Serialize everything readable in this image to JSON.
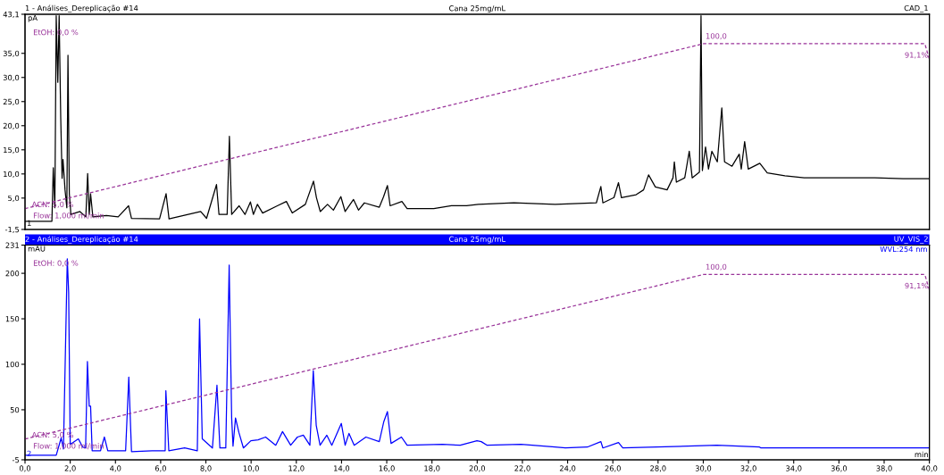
{
  "chart_data": [
    {
      "type": "line",
      "title": "1 - Análises_Dereplicação #14",
      "subtitle": "Cana 25mg/mL",
      "ylabel": "pA",
      "annotations": [
        "CAD_1",
        "EtOH: 0,0 %",
        "Flow: 1,000 ml/min",
        "1"
      ],
      "xlim": [
        0,
        40
      ],
      "ylim": [
        -1.5,
        43.1
      ],
      "yticks": [
        {
          "value": -1.5,
          "label": "-1,5"
        },
        {
          "value": 5,
          "label": "5,0"
        },
        {
          "value": 10,
          "label": "10,0"
        },
        {
          "value": 15,
          "label": "15,0"
        },
        {
          "value": 20,
          "label": "20,0"
        },
        {
          "value": 25,
          "label": "25,0"
        },
        {
          "value": 30,
          "label": "30,0"
        },
        {
          "value": 35,
          "label": "35,0"
        },
        {
          "value": 43.1,
          "label": "43,1"
        }
      ],
      "y2lim": [
        -7,
        117
      ],
      "tick_labels": "y",
      "grid": false,
      "series": [
        {
          "color": "#000000",
          "x": [
            0,
            1.19,
            1.25,
            1.32,
            1.38,
            1.45,
            1.51,
            1.58,
            1.64,
            1.68,
            1.77,
            1.85,
            1.9,
            1.96,
            2.03,
            2.43,
            2.69,
            2.77,
            2.84,
            2.9,
            3.0,
            3.6,
            4.12,
            4.58,
            4.71,
            5.95,
            6.24,
            6.37,
            7.77,
            8.03,
            8.47,
            8.58,
            8.94,
            9.04,
            9.14,
            9.47,
            9.73,
            9.97,
            10.1,
            10.28,
            10.51,
            11.16,
            11.56,
            11.82,
            12.4,
            12.76,
            12.89,
            13.06,
            13.38,
            13.64,
            13.97,
            14.16,
            14.53,
            14.75,
            15.01,
            15.67,
            15.86,
            16.03,
            16.15,
            16.67,
            16.9,
            18.08,
            18.86,
            19.53,
            20.05,
            21.62,
            23.45,
            25.27,
            25.47,
            25.56,
            26.05,
            26.25,
            26.38,
            27.03,
            27.36,
            27.58,
            27.88,
            28.4,
            28.66,
            28.72,
            28.81,
            29.18,
            29.38,
            29.51,
            29.83,
            29.9,
            29.96,
            30.1,
            30.23,
            30.38,
            30.62,
            30.82,
            30.94,
            31.27,
            31.59,
            31.68,
            31.83,
            31.99,
            32.5,
            32.83,
            33.61,
            34.46,
            35.83,
            37.59,
            38.83,
            40
          ],
          "values": [
            0.2,
            0.2,
            11.3,
            3.0,
            42.8,
            29,
            42.8,
            21.6,
            9.1,
            13.0,
            6.7,
            3.0,
            34.6,
            5.9,
            1.6,
            2.2,
            1.1,
            10.1,
            1.6,
            5.9,
            1.1,
            1.4,
            1.1,
            3.4,
            0.8,
            0.7,
            5.9,
            0.7,
            2.2,
            0.8,
            7.8,
            1.6,
            1.6,
            17.8,
            1.6,
            3.4,
            1.6,
            4.2,
            1.6,
            3.7,
            1.9,
            3.4,
            4.3,
            1.9,
            3.7,
            8.5,
            5.1,
            2.2,
            3.7,
            2.5,
            5.3,
            2.2,
            4.7,
            2.5,
            4.0,
            3.1,
            5.3,
            7.6,
            3.4,
            4.3,
            2.8,
            2.8,
            3.4,
            3.4,
            3.7,
            4.0,
            3.7,
            4.0,
            7.4,
            4.0,
            5.1,
            8.2,
            5.1,
            5.7,
            6.7,
            9.8,
            7.3,
            6.7,
            9.2,
            12.5,
            8.3,
            9.2,
            14.7,
            9.2,
            10.4,
            42.8,
            10.7,
            15.6,
            11.0,
            14.7,
            12.5,
            23.7,
            12.5,
            11.6,
            14.1,
            11.0,
            16.7,
            11.0,
            12.2,
            10.2,
            9.6,
            9.2,
            9.2,
            9.2,
            9.0,
            9.0
          ]
        },
        {
          "color": "#993399",
          "axis": "y2",
          "line_style": "dashed",
          "x": [
            0,
            30,
            39.8,
            40
          ],
          "values": [
            5,
            100,
            100,
            91.1
          ],
          "value_labels": [
            "ACN: 5,0 %",
            "100,0",
            null,
            "91,1%"
          ]
        }
      ]
    },
    {
      "type": "line",
      "title": "2 - Análises_Dereplicação #14",
      "subtitle": "Cana 25mg/mL",
      "ylabel": "mAU",
      "xlabel": "min",
      "annotations": [
        "UV_VIS_2",
        "EtOH: 0,0 %",
        "Flow: 1,000 ml/min",
        "2"
      ],
      "xlim": [
        0,
        40
      ],
      "xticks": [
        {
          "value": 0,
          "label": "0,0"
        },
        {
          "value": 2,
          "label": "2,0"
        },
        {
          "value": 4,
          "label": "4,0"
        },
        {
          "value": 6,
          "label": "6,0"
        },
        {
          "value": 8,
          "label": "8,0"
        },
        {
          "value": 10,
          "label": "10,0"
        },
        {
          "value": 12,
          "label": "12,0"
        },
        {
          "value": 14,
          "label": "14,0"
        },
        {
          "value": 16,
          "label": "16,0"
        },
        {
          "value": 18,
          "label": "18,0"
        },
        {
          "value": 20,
          "label": "20,0"
        },
        {
          "value": 22,
          "label": "22,0"
        },
        {
          "value": 24,
          "label": "24,0"
        },
        {
          "value": 26,
          "label": "26,0"
        },
        {
          "value": 28,
          "label": "28,0"
        },
        {
          "value": 30,
          "label": "30,0"
        },
        {
          "value": 32,
          "label": "32,0"
        },
        {
          "value": 34,
          "label": "34,0"
        },
        {
          "value": 36,
          "label": "36,0"
        },
        {
          "value": 38,
          "label": "38,0"
        },
        {
          "value": 40,
          "label": "40,0"
        }
      ],
      "ylim": [
        -5,
        231
      ],
      "yticks": [
        -5,
        50,
        100,
        150,
        200,
        231
      ],
      "y2lim": [
        -7,
        117
      ],
      "grid": false,
      "series": [
        {
          "name": "WVL:254 nm",
          "color": "#0000ff",
          "x": [
            0,
            1.38,
            1.6,
            1.7,
            1.87,
            1.93,
            2.0,
            2.36,
            2.55,
            2.68,
            2.76,
            2.84,
            2.9,
            2.97,
            3.34,
            3.51,
            3.66,
            4.45,
            4.59,
            4.71,
            5.62,
            6.2,
            6.23,
            6.36,
            7.06,
            7.62,
            7.72,
            7.84,
            8.29,
            8.49,
            8.62,
            8.88,
            9.03,
            9.14,
            9.2,
            9.31,
            9.46,
            9.66,
            9.99,
            10.31,
            10.64,
            11.09,
            11.39,
            11.75,
            12.05,
            12.31,
            12.6,
            12.75,
            12.88,
            13.05,
            13.35,
            13.57,
            13.99,
            14.16,
            14.33,
            14.56,
            15.08,
            15.67,
            15.87,
            16.03,
            16.19,
            16.65,
            16.9,
            18.47,
            19.25,
            19.99,
            20.18,
            20.44,
            21.94,
            23.44,
            23.9,
            24.87,
            25.47,
            25.56,
            26.25,
            26.44,
            30.6,
            32.49,
            32.55,
            40
          ],
          "values": [
            0,
            0,
            19,
            7,
            216,
            179,
            12,
            18,
            9,
            8,
            103,
            54,
            54,
            5,
            5,
            20,
            5,
            5,
            86,
            4,
            5,
            5,
            71,
            5,
            8,
            5,
            150,
            18,
            8,
            77,
            8,
            8,
            209,
            41,
            10,
            41,
            25,
            8,
            16,
            17,
            20,
            11,
            26,
            11,
            20,
            22,
            11,
            93,
            33,
            11,
            22,
            11,
            35,
            11,
            24,
            11,
            20,
            15,
            37,
            48,
            13,
            20,
            11,
            12,
            11,
            16,
            15,
            11,
            12,
            9,
            8,
            9,
            15,
            8,
            14,
            8,
            11,
            9,
            8,
            8
          ]
        },
        {
          "color": "#993399",
          "axis": "y2",
          "line_style": "dashed",
          "x": [
            0,
            30,
            39.8,
            40
          ],
          "values": [
            5,
            100,
            100,
            91.1
          ],
          "value_labels": [
            "ACN: 5,0 %",
            "100,0",
            null,
            "91,1%"
          ]
        }
      ]
    }
  ]
}
